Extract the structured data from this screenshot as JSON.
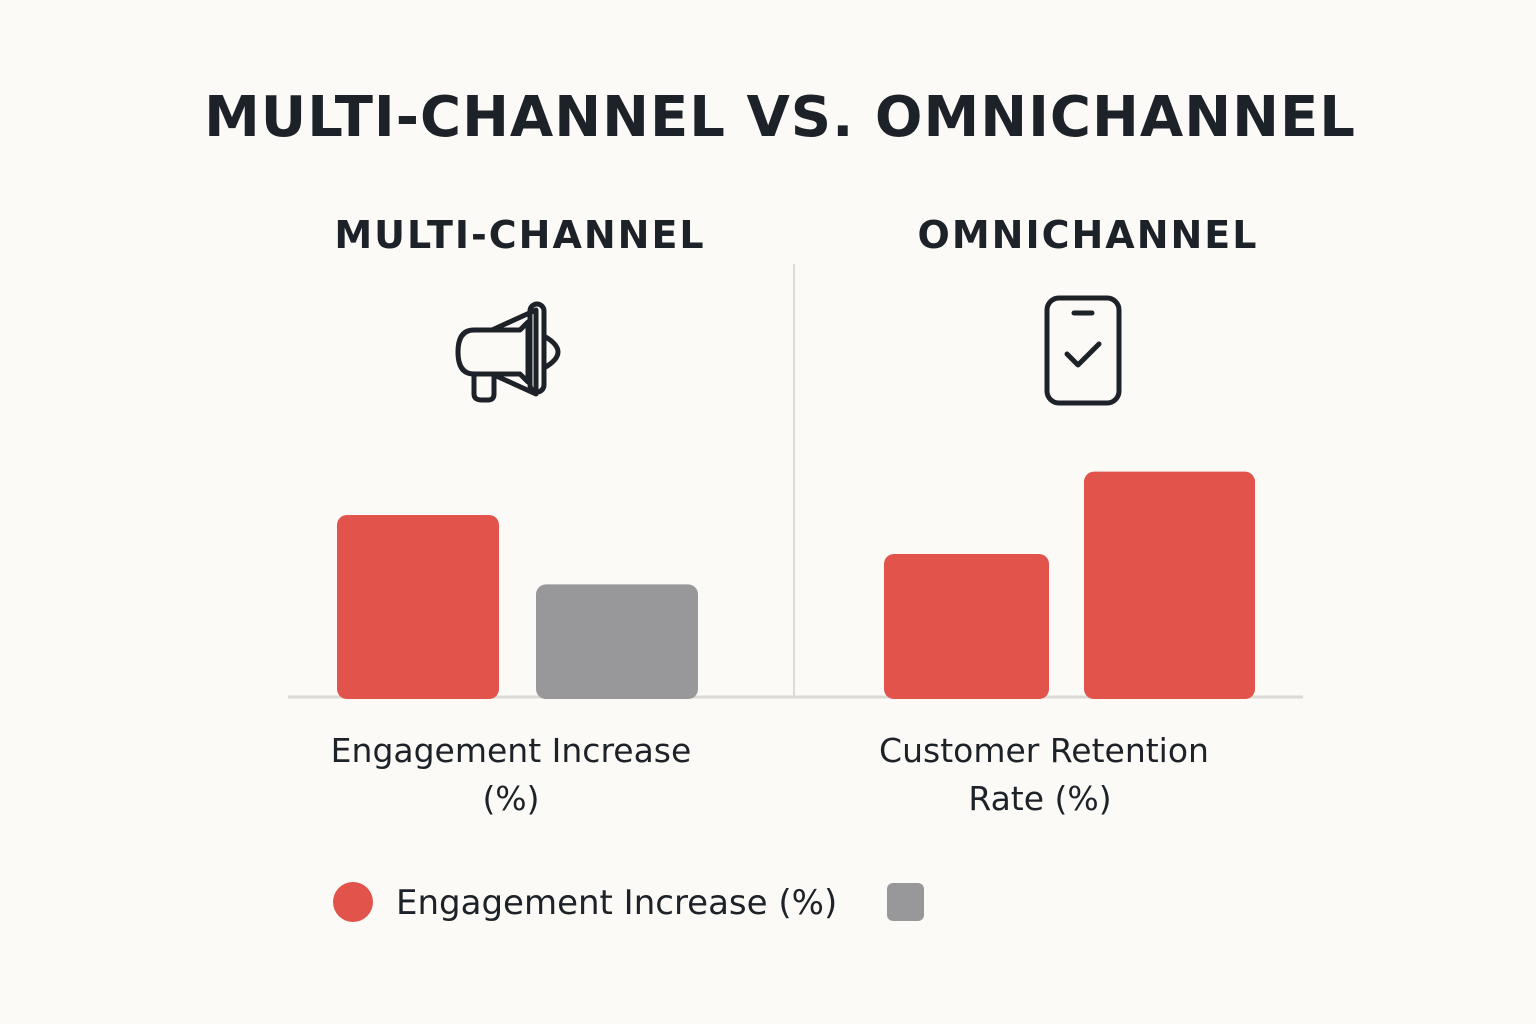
{
  "title": "MULTI-CHANNEL VS. OMNICHANNEL",
  "colors": {
    "red": "#e2534c",
    "gray": "#98989a",
    "axis": "#dddad6",
    "ink": "#1d2228"
  },
  "panel_icons": [
    "megaphone-icon",
    "smartphone-check-icon"
  ],
  "chart_data": [
    {
      "type": "bar",
      "title": "MULTI-CHANNEL",
      "xlabel": [
        "Engagement Increase",
        "(%)"
      ],
      "categories": [
        "",
        ""
      ],
      "values": [
        42,
        26
      ],
      "bar_colors": [
        "#e2534c",
        "#98989a"
      ],
      "ylim": [
        0,
        90
      ],
      "grid": false
    },
    {
      "type": "bar",
      "title": "OMNICHANNEL",
      "xlabel": [
        "Customer Retention",
        "Rate (%)"
      ],
      "categories": [
        "",
        ""
      ],
      "values": [
        33,
        52
      ],
      "bar_colors": [
        "#e2534c",
        "#e2534c"
      ],
      "ylim": [
        0,
        90
      ],
      "grid": false
    }
  ],
  "legend": {
    "position": "bottom",
    "items": [
      {
        "label": "Engagement Increase (%)",
        "color": "#e2534c",
        "shape": "circle"
      },
      {
        "label": "",
        "color": "#98989a",
        "shape": "square"
      }
    ]
  }
}
